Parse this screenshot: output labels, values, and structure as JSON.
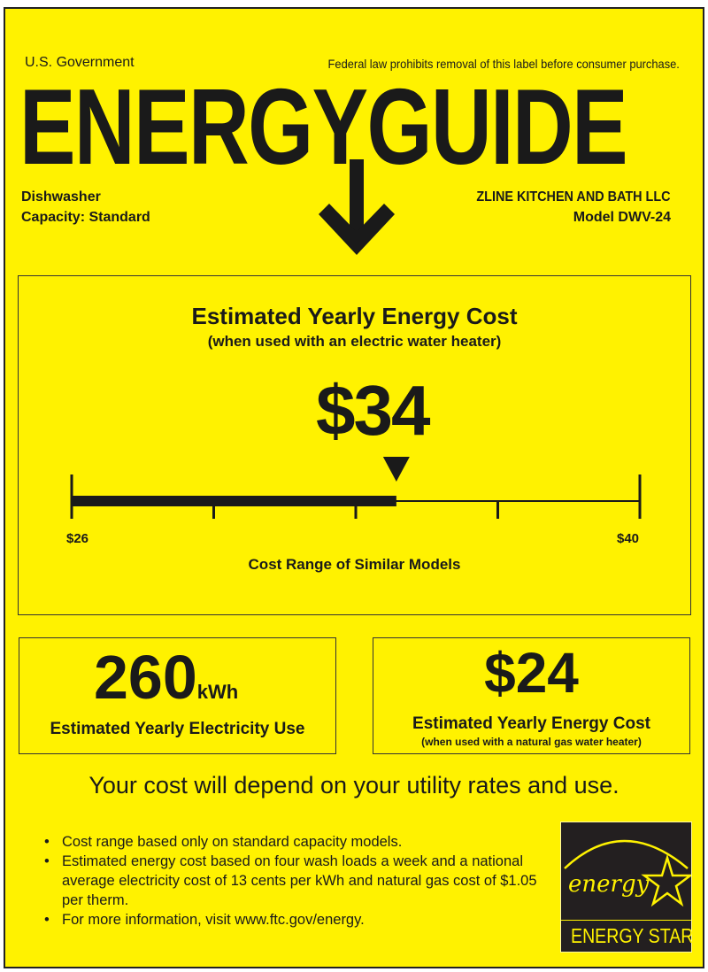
{
  "header": {
    "government": "U.S. Government",
    "notice": "Federal law prohibits removal of this label before consumer purchase.",
    "title": "ENERGYGUIDE",
    "appliance": "Dishwasher",
    "capacity": "Capacity: Standard",
    "manufacturer": "ZLINE KITCHEN AND BATH LLC",
    "model": "Model DWV-24"
  },
  "main_cost": {
    "heading": "Estimated Yearly Energy Cost",
    "subheading": "(when used with an electric water heater)",
    "value": "$34",
    "range_min_label": "$26",
    "range_max_label": "$40",
    "range_caption": "Cost Range of Similar Models",
    "scale": {
      "min": 26,
      "max": 40,
      "marker": 34
    }
  },
  "electricity": {
    "value": "260",
    "unit": "kWh",
    "caption": "Estimated Yearly Electricity Use"
  },
  "gas_cost": {
    "value": "$24",
    "caption": "Estimated Yearly Energy Cost",
    "subcaption": "(when used with a natural gas water heater)"
  },
  "disclaimer": "Your cost will depend on your utility rates and use.",
  "notes": [
    "Cost range based only on standard capacity models.",
    "Estimated energy cost based on four wash loads a week and a national average electricity cost of 13 cents per kWh and natural gas cost of $1.05 per therm.",
    "For more information, visit www.ftc.gov/energy."
  ],
  "energy_star": {
    "script": "energy",
    "label": "ENERGY STAR"
  },
  "colors": {
    "label_background": "#fff200",
    "ink": "#1a1a1a"
  }
}
